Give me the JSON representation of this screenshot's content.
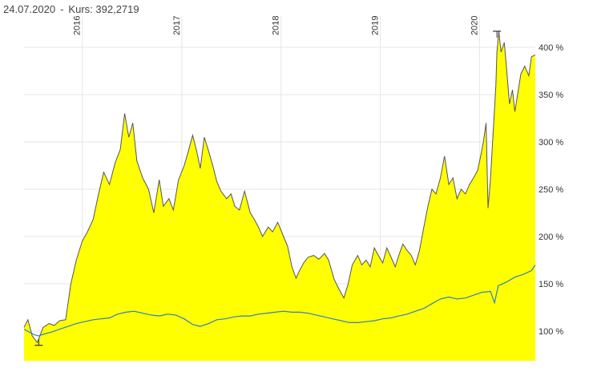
{
  "header": {
    "date": "24.07.2020",
    "separator": "-",
    "kurs_label": "Kurs:",
    "kurs_value": "392,2719"
  },
  "chart_data": {
    "type": "area",
    "x_axis": {
      "type": "date",
      "range": [
        "2015-06-01",
        "2020-07-24"
      ],
      "tick_labels": [
        "2016",
        "2017",
        "2018",
        "2019",
        "2020"
      ],
      "tick_dates": [
        "2016-01-01",
        "2017-01-01",
        "2018-01-01",
        "2019-01-01",
        "2020-01-01"
      ],
      "grid": true,
      "label_position": "top-rotated"
    },
    "y_axis": {
      "unit": "%",
      "range": [
        70,
        420
      ],
      "position": "right",
      "tick_values": [
        100,
        150,
        200,
        250,
        300,
        350,
        400
      ],
      "tick_labels": [
        "100 %",
        "150 %",
        "200 %",
        "250 %",
        "300 %",
        "350 %",
        "400 %"
      ],
      "grid": true
    },
    "markers": [
      {
        "kind": "low",
        "date": "2015-07-25",
        "value": 85
      },
      {
        "kind": "high",
        "date": "2020-03-05",
        "value": 417
      }
    ],
    "series": [
      {
        "style": "area",
        "fill": "#ffff00",
        "line": "#555555",
        "points": [
          [
            "2015-06-01",
            104
          ],
          [
            "2015-06-15",
            112
          ],
          [
            "2015-07-01",
            95
          ],
          [
            "2015-07-20",
            88
          ],
          [
            "2015-08-10",
            104
          ],
          [
            "2015-09-01",
            108
          ],
          [
            "2015-09-20",
            106
          ],
          [
            "2015-10-10",
            111
          ],
          [
            "2015-11-01",
            112
          ],
          [
            "2015-11-20",
            150
          ],
          [
            "2015-12-10",
            175
          ],
          [
            "2016-01-01",
            195
          ],
          [
            "2016-01-20",
            205
          ],
          [
            "2016-02-10",
            218
          ],
          [
            "2016-03-01",
            245
          ],
          [
            "2016-03-20",
            268
          ],
          [
            "2016-04-10",
            255
          ],
          [
            "2016-05-01",
            278
          ],
          [
            "2016-05-20",
            292
          ],
          [
            "2016-06-05",
            330
          ],
          [
            "2016-06-20",
            305
          ],
          [
            "2016-07-05",
            320
          ],
          [
            "2016-07-20",
            280
          ],
          [
            "2016-08-10",
            262
          ],
          [
            "2016-09-01",
            250
          ],
          [
            "2016-09-20",
            225
          ],
          [
            "2016-10-10",
            260
          ],
          [
            "2016-10-25",
            232
          ],
          [
            "2016-11-15",
            240
          ],
          [
            "2016-12-01",
            228
          ],
          [
            "2016-12-20",
            260
          ],
          [
            "2017-01-10",
            275
          ],
          [
            "2017-01-25",
            290
          ],
          [
            "2017-02-10",
            307
          ],
          [
            "2017-02-25",
            290
          ],
          [
            "2017-03-10",
            272
          ],
          [
            "2017-03-25",
            305
          ],
          [
            "2017-04-10",
            290
          ],
          [
            "2017-04-25",
            275
          ],
          [
            "2017-05-10",
            258
          ],
          [
            "2017-05-25",
            248
          ],
          [
            "2017-06-15",
            240
          ],
          [
            "2017-07-01",
            245
          ],
          [
            "2017-07-15",
            232
          ],
          [
            "2017-08-01",
            228
          ],
          [
            "2017-08-20",
            248
          ],
          [
            "2017-09-10",
            225
          ],
          [
            "2017-09-25",
            218
          ],
          [
            "2017-10-10",
            210
          ],
          [
            "2017-10-25",
            200
          ],
          [
            "2017-11-15",
            210
          ],
          [
            "2017-12-01",
            205
          ],
          [
            "2017-12-20",
            215
          ],
          [
            "2018-01-10",
            200
          ],
          [
            "2018-01-25",
            190
          ],
          [
            "2018-02-10",
            168
          ],
          [
            "2018-02-25",
            156
          ],
          [
            "2018-03-10",
            164
          ],
          [
            "2018-03-25",
            172
          ],
          [
            "2018-04-10",
            178
          ],
          [
            "2018-05-01",
            180
          ],
          [
            "2018-05-20",
            176
          ],
          [
            "2018-06-10",
            182
          ],
          [
            "2018-06-25",
            175
          ],
          [
            "2018-07-15",
            155
          ],
          [
            "2018-08-01",
            145
          ],
          [
            "2018-08-20",
            135
          ],
          [
            "2018-09-05",
            150
          ],
          [
            "2018-09-20",
            170
          ],
          [
            "2018-10-10",
            180
          ],
          [
            "2018-10-25",
            170
          ],
          [
            "2018-11-10",
            175
          ],
          [
            "2018-11-25",
            168
          ],
          [
            "2018-12-10",
            188
          ],
          [
            "2018-12-25",
            180
          ],
          [
            "2019-01-10",
            172
          ],
          [
            "2019-01-25",
            188
          ],
          [
            "2019-02-10",
            178
          ],
          [
            "2019-02-25",
            168
          ],
          [
            "2019-03-10",
            180
          ],
          [
            "2019-03-25",
            192
          ],
          [
            "2019-04-10",
            185
          ],
          [
            "2019-04-25",
            180
          ],
          [
            "2019-05-10",
            170
          ],
          [
            "2019-05-25",
            185
          ],
          [
            "2019-06-10",
            210
          ],
          [
            "2019-06-25",
            232
          ],
          [
            "2019-07-10",
            250
          ],
          [
            "2019-07-25",
            245
          ],
          [
            "2019-08-10",
            262
          ],
          [
            "2019-08-25",
            285
          ],
          [
            "2019-09-10",
            255
          ],
          [
            "2019-09-25",
            262
          ],
          [
            "2019-10-10",
            240
          ],
          [
            "2019-10-25",
            250
          ],
          [
            "2019-11-10",
            245
          ],
          [
            "2019-11-25",
            255
          ],
          [
            "2019-12-10",
            262
          ],
          [
            "2019-12-25",
            270
          ],
          [
            "2020-01-05",
            285
          ],
          [
            "2020-01-15",
            300
          ],
          [
            "2020-01-25",
            320
          ],
          [
            "2020-02-01",
            230
          ],
          [
            "2020-02-10",
            260
          ],
          [
            "2020-02-20",
            310
          ],
          [
            "2020-03-01",
            360
          ],
          [
            "2020-03-05",
            395
          ],
          [
            "2020-03-12",
            417
          ],
          [
            "2020-03-20",
            395
          ],
          [
            "2020-04-01",
            405
          ],
          [
            "2020-04-10",
            375
          ],
          [
            "2020-04-20",
            340
          ],
          [
            "2020-05-01",
            355
          ],
          [
            "2020-05-10",
            332
          ],
          [
            "2020-05-20",
            350
          ],
          [
            "2020-06-01",
            372
          ],
          [
            "2020-06-15",
            380
          ],
          [
            "2020-06-30",
            370
          ],
          [
            "2020-07-10",
            390
          ],
          [
            "2020-07-24",
            392
          ]
        ]
      },
      {
        "style": "line",
        "line": "#2f7fc1",
        "points": [
          [
            "2015-06-01",
            102
          ],
          [
            "2015-06-20",
            99
          ],
          [
            "2015-07-10",
            96
          ],
          [
            "2015-07-25",
            95
          ],
          [
            "2015-08-15",
            97
          ],
          [
            "2015-09-10",
            99
          ],
          [
            "2015-10-10",
            102
          ],
          [
            "2015-11-10",
            105
          ],
          [
            "2015-12-10",
            108
          ],
          [
            "2016-01-10",
            110
          ],
          [
            "2016-02-10",
            112
          ],
          [
            "2016-03-10",
            113
          ],
          [
            "2016-04-10",
            114
          ],
          [
            "2016-05-10",
            118
          ],
          [
            "2016-06-10",
            120
          ],
          [
            "2016-07-10",
            121
          ],
          [
            "2016-08-10",
            119
          ],
          [
            "2016-09-10",
            117
          ],
          [
            "2016-10-10",
            116
          ],
          [
            "2016-11-10",
            118
          ],
          [
            "2016-12-10",
            117
          ],
          [
            "2017-01-10",
            113
          ],
          [
            "2017-02-10",
            107
          ],
          [
            "2017-03-10",
            105
          ],
          [
            "2017-04-10",
            108
          ],
          [
            "2017-05-10",
            112
          ],
          [
            "2017-06-10",
            113
          ],
          [
            "2017-07-10",
            115
          ],
          [
            "2017-08-10",
            116
          ],
          [
            "2017-09-10",
            116
          ],
          [
            "2017-10-10",
            118
          ],
          [
            "2017-11-10",
            119
          ],
          [
            "2017-12-10",
            120
          ],
          [
            "2018-01-10",
            121
          ],
          [
            "2018-02-10",
            120
          ],
          [
            "2018-03-10",
            120
          ],
          [
            "2018-04-10",
            119
          ],
          [
            "2018-05-10",
            117
          ],
          [
            "2018-06-10",
            115
          ],
          [
            "2018-07-10",
            113
          ],
          [
            "2018-08-10",
            111
          ],
          [
            "2018-09-10",
            109
          ],
          [
            "2018-10-10",
            109
          ],
          [
            "2018-11-10",
            110
          ],
          [
            "2018-12-10",
            111
          ],
          [
            "2019-01-10",
            113
          ],
          [
            "2019-02-10",
            114
          ],
          [
            "2019-03-10",
            116
          ],
          [
            "2019-04-10",
            118
          ],
          [
            "2019-05-10",
            121
          ],
          [
            "2019-06-10",
            124
          ],
          [
            "2019-07-10",
            129
          ],
          [
            "2019-08-10",
            134
          ],
          [
            "2019-09-10",
            136
          ],
          [
            "2019-10-10",
            134
          ],
          [
            "2019-11-10",
            135
          ],
          [
            "2019-12-10",
            138
          ],
          [
            "2020-01-10",
            141
          ],
          [
            "2020-02-10",
            142
          ],
          [
            "2020-02-25",
            130
          ],
          [
            "2020-03-10",
            148
          ],
          [
            "2020-04-10",
            152
          ],
          [
            "2020-05-10",
            157
          ],
          [
            "2020-06-10",
            160
          ],
          [
            "2020-07-10",
            164
          ],
          [
            "2020-07-24",
            170
          ]
        ]
      }
    ]
  }
}
